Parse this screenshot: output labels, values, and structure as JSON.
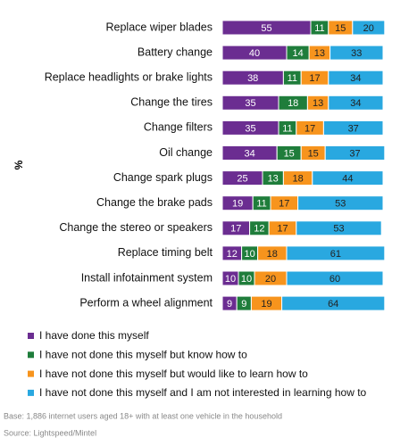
{
  "chart_data": {
    "type": "stacked-bar-horizontal",
    "axis_label": "%",
    "categories": [
      "Replace wiper blades",
      "Battery change",
      "Replace headlights or brake lights",
      "Change the tires",
      "Change filters",
      "Oil change",
      "Change spark plugs",
      "Change the brake pads",
      "Change the stereo or speakers",
      "Replace timing belt",
      "Install infotainment system",
      "Perform a wheel alignment"
    ],
    "series": [
      {
        "name": "I have done this myself",
        "color": "#6b2d91",
        "label_color": "#ffffff",
        "values": [
          55,
          40,
          38,
          35,
          35,
          34,
          25,
          19,
          17,
          12,
          10,
          9
        ]
      },
      {
        "name": "I have not done this myself but know how to",
        "color": "#1f7d3b",
        "label_color": "#ffffff",
        "values": [
          11,
          14,
          11,
          18,
          11,
          15,
          13,
          11,
          12,
          10,
          10,
          9
        ]
      },
      {
        "name": "I have not done this myself but would like to learn how to",
        "color": "#f7941d",
        "label_color": "#222222",
        "values": [
          15,
          13,
          17,
          13,
          17,
          15,
          18,
          17,
          17,
          18,
          20,
          19
        ]
      },
      {
        "name": "I have not done this myself and I am not interested in learning how to",
        "color": "#29a8e0",
        "label_color": "#222222",
        "values": [
          20,
          33,
          34,
          34,
          37,
          37,
          44,
          53,
          53,
          61,
          60,
          64
        ]
      }
    ],
    "notes": [
      "Base: 1,886 internet users aged 18+ with at least one vehicle in the household",
      "Source: Lightspeed/Mintel"
    ]
  }
}
